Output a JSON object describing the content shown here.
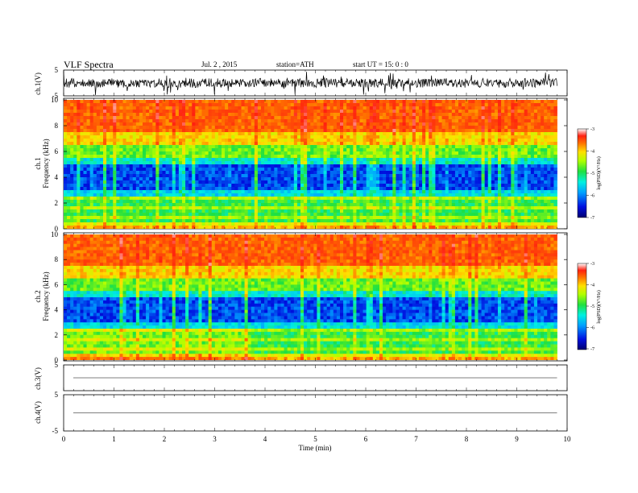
{
  "header": {
    "title": "VLF  Spectra",
    "date": "Jul.  2  , 2015",
    "station": "station=ATH",
    "start": "start  UT  =    15: 0   : 0"
  },
  "chart_data": {
    "type": "heatmap",
    "x_axis": {
      "label": "Time  (min)",
      "range": [
        0,
        10
      ],
      "ticks": [
        "0",
        "1",
        "2",
        "3",
        "4",
        "5",
        "6",
        "7",
        "8",
        "9",
        "10"
      ],
      "data_end_min": 9.8
    },
    "panels": [
      {
        "id": "ch1_waveform",
        "type": "line",
        "ylabel": "ch.1(V)",
        "ylim": [
          -5,
          5
        ],
        "yticks": [
          "5",
          "-5"
        ],
        "description_level": "noisy waveform, amplitude about 1 V"
      },
      {
        "id": "ch1_spectrogram",
        "type": "heatmap",
        "ylabel_top": "ch.1",
        "ylabel": "Frequency  (kHz)",
        "ylim": [
          0,
          10
        ],
        "yticks": [
          "0",
          "2",
          "4",
          "6",
          "8",
          "10"
        ],
        "colorbar": {
          "label": "log(PSD)(V²/Hz)",
          "range": [
            -7,
            -3
          ],
          "ticks": [
            "-3",
            "-4",
            "-5",
            "-6",
            "-7"
          ]
        }
      },
      {
        "id": "ch2_spectrogram",
        "type": "heatmap",
        "ylabel_top": "ch.2",
        "ylabel": "Frequency  (kHz)",
        "ylim": [
          0,
          10
        ],
        "yticks": [
          "0",
          "2",
          "4",
          "6",
          "8",
          "10"
        ],
        "colorbar": {
          "label": "log(PSD)(V²/Hz)",
          "range": [
            -7,
            -3
          ],
          "ticks": [
            "-3",
            "-4",
            "-5",
            "-6",
            "-7"
          ]
        }
      },
      {
        "id": "ch3_waveform",
        "type": "line",
        "ylabel": "ch.3(V)",
        "ylim": [
          -5,
          5
        ],
        "yticks": [
          "5"
        ],
        "flat_level": 0
      },
      {
        "id": "ch4_waveform",
        "type": "line",
        "ylabel": "ch.4(V)",
        "ylim": [
          -5,
          5
        ],
        "yticks": [
          "5",
          "-5"
        ],
        "flat_level": 0
      }
    ]
  }
}
